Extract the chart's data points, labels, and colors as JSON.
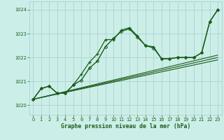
{
  "xlabel": "Graphe pression niveau de la mer (hPa)",
  "ylim": [
    1019.6,
    1024.35
  ],
  "xlim": [
    -0.5,
    23.5
  ],
  "bg_color": "#cceee8",
  "grid_color": "#aacccc",
  "line_color": "#1a5c1a",
  "xticks": [
    0,
    1,
    2,
    3,
    4,
    5,
    6,
    7,
    8,
    9,
    10,
    11,
    12,
    13,
    14,
    15,
    16,
    17,
    18,
    19,
    20,
    21,
    22,
    23
  ],
  "yticks": [
    1020,
    1021,
    1022,
    1023,
    1024
  ],
  "line1_x": [
    0,
    1,
    2,
    3,
    4,
    5,
    6,
    7,
    8,
    9,
    10,
    11,
    12,
    13,
    14,
    15,
    16,
    17,
    18,
    19,
    20,
    21,
    22,
    23
  ],
  "line1_y": [
    1020.25,
    1020.7,
    1020.8,
    1020.5,
    1020.5,
    1020.85,
    1021.05,
    1021.55,
    1021.85,
    1022.45,
    1022.8,
    1023.1,
    1023.2,
    1022.85,
    1022.5,
    1022.4,
    1021.95,
    1021.95,
    1022.0,
    1022.0,
    1022.0,
    1022.2,
    1023.5,
    1024.0
  ],
  "line2_x": [
    0,
    1,
    2,
    3,
    4,
    5,
    6,
    7,
    8,
    9,
    10,
    11,
    12,
    13,
    14,
    15,
    16,
    17,
    18,
    19,
    20,
    21,
    22,
    23
  ],
  "line2_y": [
    1020.25,
    1020.7,
    1020.8,
    1020.5,
    1020.5,
    1020.85,
    1021.3,
    1021.8,
    1022.15,
    1022.75,
    1022.75,
    1023.15,
    1023.25,
    1022.9,
    1022.5,
    1022.45,
    1021.95,
    1021.95,
    1022.0,
    1022.0,
    1022.0,
    1022.2,
    1023.5,
    1024.0
  ],
  "trend_lines": [
    [
      [
        0,
        1020.25
      ],
      [
        23,
        1022.1
      ]
    ],
    [
      [
        0,
        1020.25
      ],
      [
        23,
        1022.0
      ]
    ],
    [
      [
        0,
        1020.25
      ],
      [
        23,
        1021.9
      ]
    ]
  ]
}
